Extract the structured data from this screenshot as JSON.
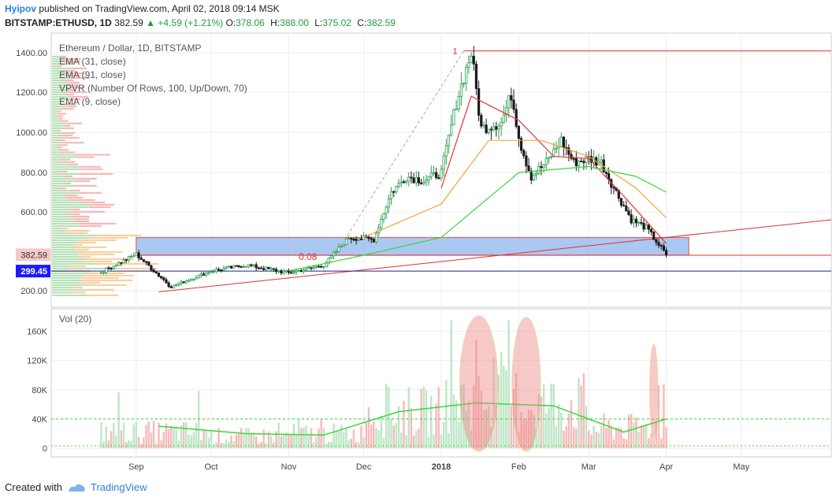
{
  "header": {
    "author": "Hyipov",
    "published": "published on TradingView.com, April 02, 2018 09:14 MSK",
    "symbol": "BITSTAMP:ETHUSD, 1D",
    "last": "382.59",
    "change": "▲ +4.59 (+1.21%)",
    "o_label": "O:",
    "o": "378.06",
    "h_label": "H:",
    "h": "388.00",
    "l_label": "L:",
    "l": "375.02",
    "c_label": "C:",
    "c": "382.59"
  },
  "legend": {
    "title": "Ethereum / Dollar, 1D, BITSTAMP",
    "items": [
      "EMA (31, close)",
      "EMA (91, close)",
      "VPVR (Number Of Rows, 100, Up/Down, 70)",
      "EMA (9, close)"
    ],
    "vol_label": "Vol (20)"
  },
  "footer": {
    "created": "Created with",
    "brand": "TradingView"
  },
  "colors": {
    "up": "#2e9e4f",
    "down": "#1a1a1a",
    "ema9": "#e83030",
    "ema31": "#f5a13c",
    "ema91": "#3ad63a",
    "zone": "#8fb6ee",
    "zone_border": "#e03030",
    "fib": "#e03030"
  },
  "chart_data": [
    {
      "type": "candlestick",
      "title": "Ethereum / Dollar, 1D, BITSTAMP",
      "x_tick_labels": [
        "Sep",
        "Oct",
        "Nov",
        "Dec",
        "2018",
        "Feb",
        "Mar",
        "Apr",
        "May"
      ],
      "y_tick_labels": [
        "1400.00",
        "1200.00",
        "1000.00",
        "800.00",
        "600.00",
        "200.00"
      ],
      "ylim": [
        140,
        1450
      ],
      "price_labels": {
        "last": "382.59",
        "level": "299.45"
      },
      "annotations": {
        "fib_top": "1",
        "fib_level": "0.08"
      },
      "key_prices": [
        {
          "date": "Aug 18",
          "close": 295
        },
        {
          "date": "Sep 1",
          "close": 385
        },
        {
          "date": "Sep 15",
          "close": 220
        },
        {
          "date": "Oct 1",
          "close": 300
        },
        {
          "date": "Oct 15",
          "close": 330
        },
        {
          "date": "Nov 1",
          "close": 290
        },
        {
          "date": "Nov 15",
          "close": 330
        },
        {
          "date": "Nov 25",
          "close": 470
        },
        {
          "date": "Dec 5",
          "close": 460
        },
        {
          "date": "Dec 12",
          "close": 700
        },
        {
          "date": "Dec 18",
          "close": 780
        },
        {
          "date": "Dec 25",
          "close": 760
        },
        {
          "date": "Jan 1",
          "close": 800
        },
        {
          "date": "Jan 7",
          "close": 1150
        },
        {
          "date": "Jan 13",
          "close": 1400
        },
        {
          "date": "Jan 17",
          "close": 1020
        },
        {
          "date": "Jan 25",
          "close": 1050
        },
        {
          "date": "Jan 29",
          "close": 1190
        },
        {
          "date": "Feb 2",
          "close": 930
        },
        {
          "date": "Feb 6",
          "close": 780
        },
        {
          "date": "Feb 12",
          "close": 850
        },
        {
          "date": "Feb 18",
          "close": 960
        },
        {
          "date": "Feb 23",
          "close": 850
        },
        {
          "date": "Mar 1",
          "close": 870
        },
        {
          "date": "Mar 6",
          "close": 850
        },
        {
          "date": "Mar 12",
          "close": 700
        },
        {
          "date": "Mar 18",
          "close": 560
        },
        {
          "date": "Mar 24",
          "close": 520
        },
        {
          "date": "Mar 28",
          "close": 450
        },
        {
          "date": "Apr 1",
          "close": 382.59
        }
      ],
      "ema_series": [
        {
          "name": "EMA (9, close)",
          "values": [
            [
              "Jan 1",
              720
            ],
            [
              "Jan 13",
              1180
            ],
            [
              "Feb 1",
              1060
            ],
            [
              "Feb 15",
              880
            ],
            [
              "Mar 1",
              870
            ],
            [
              "Mar 15",
              680
            ],
            [
              "Apr 1",
              440
            ]
          ]
        },
        {
          "name": "EMA (31, close)",
          "values": [
            [
              "Dec 1",
              470
            ],
            [
              "Jan 1",
              640
            ],
            [
              "Jan 20",
              960
            ],
            [
              "Feb 10",
              960
            ],
            [
              "Mar 1",
              880
            ],
            [
              "Mar 20",
              720
            ],
            [
              "Apr 1",
              570
            ]
          ]
        },
        {
          "name": "EMA (91, close)",
          "values": [
            [
              "Nov 1",
              300
            ],
            [
              "Dec 1",
              380
            ],
            [
              "Jan 1",
              470
            ],
            [
              "Feb 1",
              800
            ],
            [
              "Mar 1",
              830
            ],
            [
              "Mar 20",
              780
            ],
            [
              "Apr 1",
              700
            ]
          ]
        }
      ]
    },
    {
      "type": "bar",
      "title": "Vol (20)",
      "y_tick_labels": [
        "160K",
        "120K",
        "80K",
        "40K",
        "0"
      ],
      "ylim": [
        0,
        180000
      ],
      "reference_line": 40000,
      "volume_profile_by_month": [
        {
          "month": "Sep",
          "typical": 20000,
          "peak": 95000
        },
        {
          "month": "Oct",
          "typical": 15000,
          "peak": 35000
        },
        {
          "month": "Nov",
          "typical": 18000,
          "peak": 40000
        },
        {
          "month": "Dec",
          "typical": 45000,
          "peak": 120000
        },
        {
          "month": "Jan",
          "typical": 60000,
          "peak": 175000
        },
        {
          "month": "Feb",
          "typical": 55000,
          "peak": 185000
        },
        {
          "month": "Mar",
          "typical": 25000,
          "peak": 95000
        }
      ],
      "ma_series": {
        "name": "Vol MA",
        "points": [
          [
            "Sep 10",
            30000
          ],
          [
            "Oct 15",
            20000
          ],
          [
            "Nov 15",
            18000
          ],
          [
            "Dec 15",
            50000
          ],
          [
            "Jan 15",
            62000
          ],
          [
            "Feb 15",
            58000
          ],
          [
            "Mar 15",
            22000
          ],
          [
            "Apr 1",
            40000
          ]
        ]
      }
    }
  ]
}
